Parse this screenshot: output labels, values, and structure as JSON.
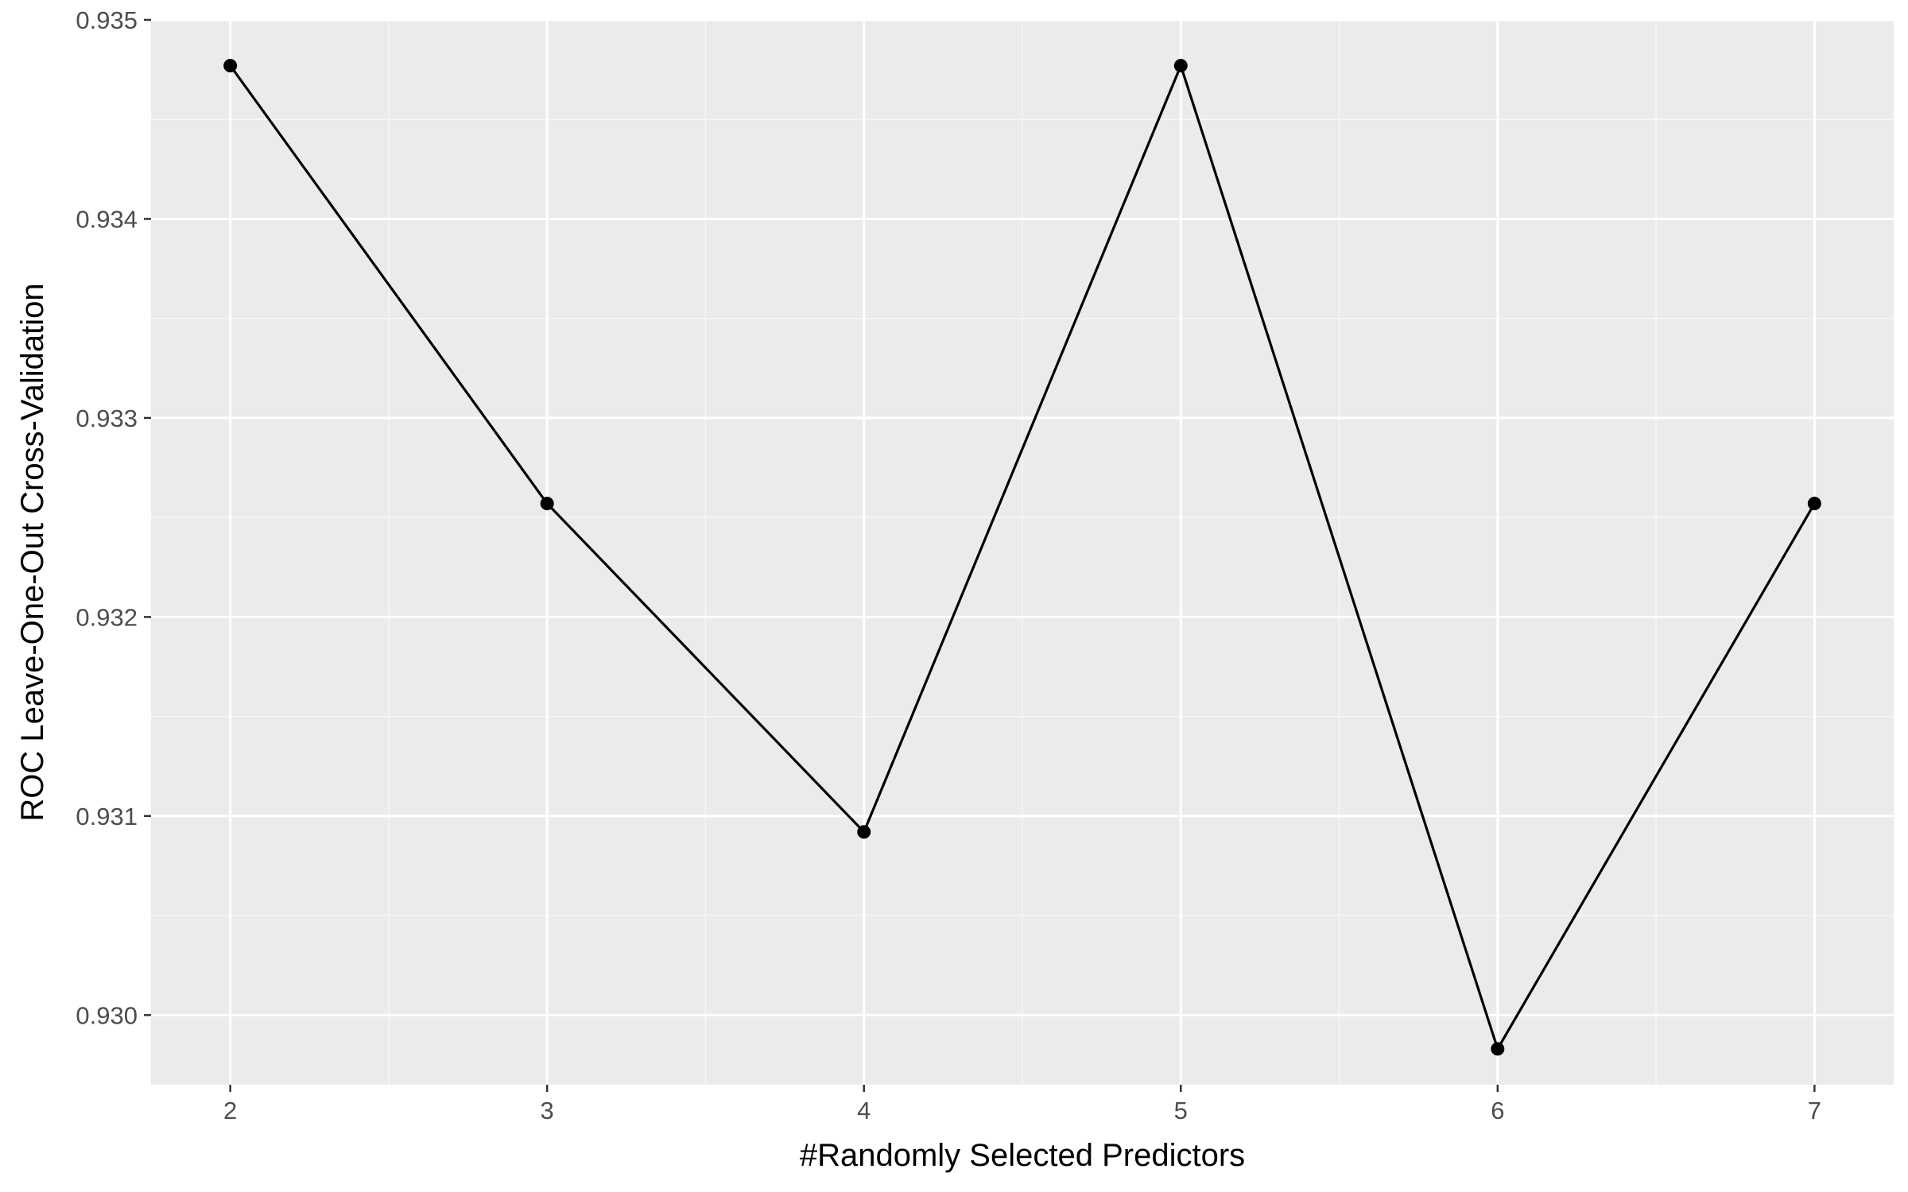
{
  "chart_data": {
    "type": "line",
    "xlabel": "#Randomly Selected Predictors",
    "ylabel": "ROC Leave-One-Out Cross-Validation",
    "x_ticks": [
      2,
      3,
      4,
      5,
      6,
      7
    ],
    "y_ticks": [
      "0.930",
      "0.931",
      "0.932",
      "0.933",
      "0.934",
      "0.935"
    ],
    "xlim": [
      1.75,
      7.25
    ],
    "ylim": [
      0.92965,
      0.935
    ],
    "grid": true,
    "series": [
      {
        "x": [
          2,
          3,
          4,
          5,
          6,
          7
        ],
        "y": [
          0.93477,
          0.93257,
          0.93092,
          0.93477,
          0.92983,
          0.93257
        ],
        "markers": true
      }
    ],
    "colors": {
      "panel_background": "#EBEBEB",
      "major_grid": "#FFFFFF",
      "minor_grid": "#F7F7F7",
      "series_line": "#000000",
      "series_point": "#000000",
      "tick_text": "#4D4D4D",
      "title_text": "#000000"
    }
  }
}
